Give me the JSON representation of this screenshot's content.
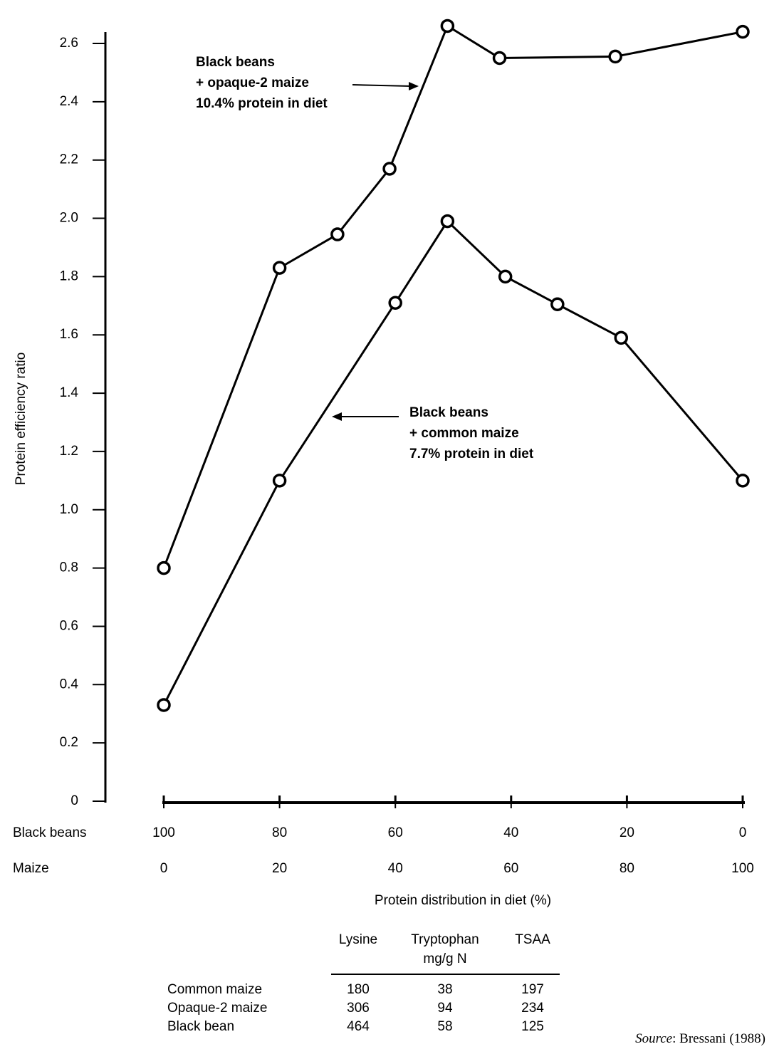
{
  "chart_data": {
    "type": "line",
    "ylabel": "Protein efficiency ratio",
    "ylim": [
      0,
      2.6
    ],
    "yticks": [
      0,
      0.2,
      0.4,
      0.6,
      0.8,
      {
        "value": 1,
        "label": "1.0"
      },
      1.2,
      1.4,
      1.6,
      1.8,
      {
        "value": 2,
        "label": "2.0"
      },
      2.2,
      2.4,
      2.6
    ],
    "xlim": [
      0,
      100
    ],
    "xticks": [
      0,
      20,
      40,
      60,
      80,
      100
    ],
    "xlabel": "Maize",
    "x2lim": [
      100,
      0
    ],
    "x2ticks": [
      100,
      80,
      60,
      40,
      20,
      0
    ],
    "x2label": "Black beans",
    "xtitle": "Protein distribution in diet (%)",
    "color": "#000000",
    "series": [
      {
        "x": [
          0,
          20,
          30,
          39,
          49,
          58,
          78,
          100
        ],
        "values": [
          0.8,
          1.83,
          1.945,
          2.17,
          2.66,
          2.55,
          2.555,
          2.64
        ]
      },
      {
        "x": [
          0,
          20,
          40,
          49,
          59,
          68,
          79,
          100
        ],
        "values": [
          0.33,
          1.1,
          1.71,
          1.99,
          1.8,
          1.705,
          1.59,
          1.1
        ]
      }
    ],
    "annotations": [
      {
        "lines": [
          "Black beans",
          "+ opaque-2 maize",
          "10.4% protein in diet"
        ]
      },
      {
        "lines": [
          "Black  beans",
          "+ common maize",
          "7.7% protein in diet"
        ]
      }
    ],
    "table": {
      "columns": [
        "Lysine",
        "Tryptophan",
        "TSAA"
      ],
      "unit": "mg/g N",
      "rows": [
        {
          "label": "Common maize",
          "values": [
            180,
            38,
            197
          ]
        },
        {
          "label": "Opaque-2 maize",
          "values": [
            306,
            94,
            234
          ]
        },
        {
          "label": "Black bean",
          "values": [
            464,
            58,
            125
          ]
        }
      ]
    },
    "source": [
      "Source",
      ": Bressani (1988)"
    ]
  }
}
